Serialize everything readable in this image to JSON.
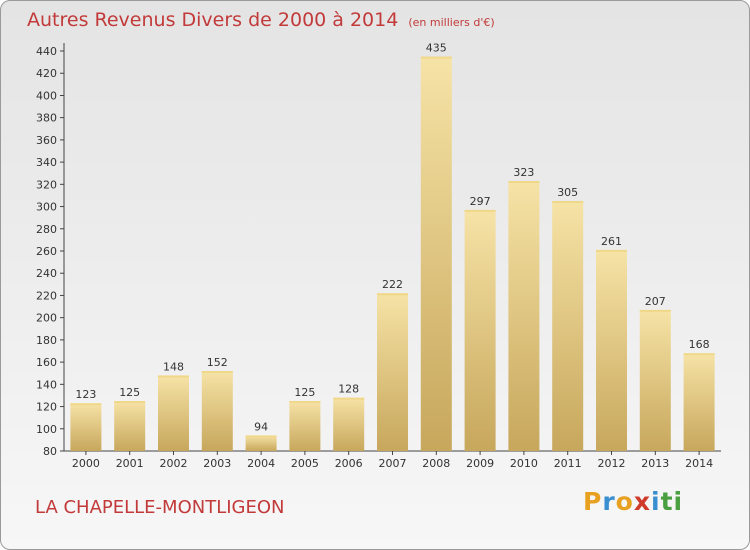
{
  "header": {
    "title": "Autres Revenus Divers de 2000 à 2014",
    "subtitle": "(en milliers d'€)"
  },
  "footer": {
    "commune": "LA CHAPELLE-MONTLIGEON"
  },
  "logo": {
    "letters": [
      "P",
      "r",
      "o",
      "x",
      "i",
      "t",
      "i"
    ],
    "colors": [
      "#e8a020",
      "#3a8fd0",
      "#e8a020",
      "#d03a2a",
      "#3a8fd0",
      "#4aa040",
      "#4aa040"
    ]
  },
  "colors": {
    "title": "#c23a3a",
    "bar_light": "#f6e3a6",
    "bar_dark": "#c7a75c",
    "bar_top": "#f0d88a"
  },
  "chart_data": {
    "type": "bar",
    "title": "Autres Revenus Divers de 2000 à 2014",
    "xlabel": "",
    "ylabel": "",
    "categories": [
      "2000",
      "2001",
      "2002",
      "2003",
      "2004",
      "2005",
      "2006",
      "2007",
      "2008",
      "2009",
      "2010",
      "2011",
      "2012",
      "2013",
      "2014"
    ],
    "values": [
      123,
      125,
      148,
      152,
      94,
      125,
      128,
      222,
      435,
      297,
      323,
      305,
      261,
      207,
      168
    ],
    "ylim": [
      80,
      440
    ],
    "yticks": [
      80,
      100,
      120,
      140,
      160,
      180,
      200,
      220,
      240,
      260,
      280,
      300,
      320,
      340,
      360,
      380,
      400,
      420,
      440
    ],
    "grid": false
  }
}
